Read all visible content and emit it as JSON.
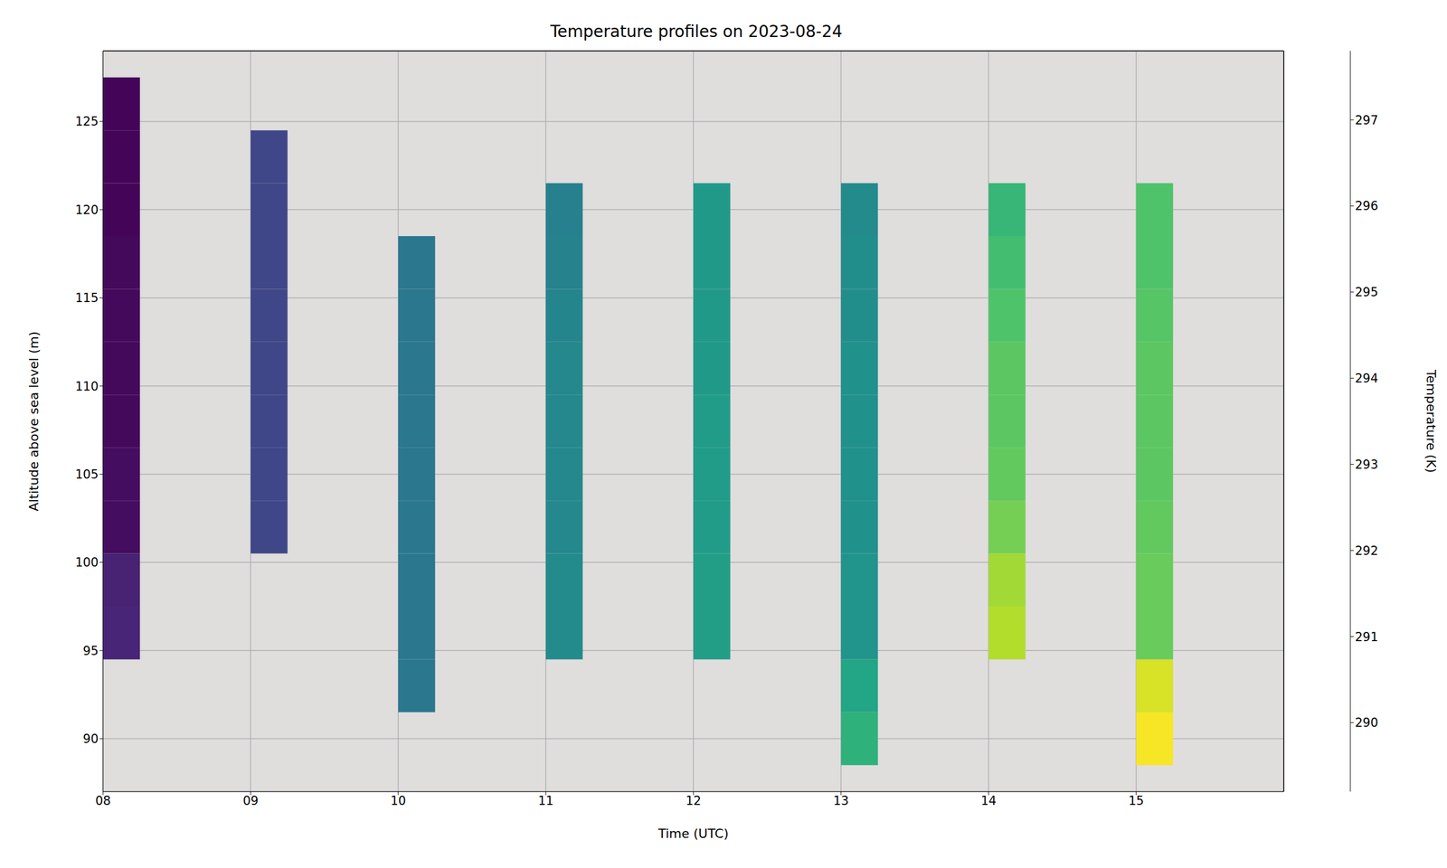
{
  "chart_data": {
    "type": "heatmap",
    "title": "Temperature profiles on 2023-08-24",
    "x_label": "Time (UTC)",
    "y_label": "Altitude above sea level (m)",
    "xlim": [
      8,
      16
    ],
    "xticks": [
      {
        "value": 8,
        "label": "08"
      },
      {
        "value": 9,
        "label": "09"
      },
      {
        "value": 10,
        "label": "10"
      },
      {
        "value": 11,
        "label": "11"
      },
      {
        "value": 12,
        "label": "12"
      },
      {
        "value": 13,
        "label": "13"
      },
      {
        "value": 14,
        "label": "14"
      },
      {
        "value": 15,
        "label": "15"
      }
    ],
    "ylim": [
      87,
      129
    ],
    "yticks": [
      90,
      95,
      100,
      105,
      110,
      115,
      120,
      125
    ],
    "grid": true,
    "cell_width": 0.25,
    "profiles": [
      {
        "time": 8,
        "bin_edges": [
          94.5,
          97.5,
          100.5,
          103.5,
          106.5,
          109.5,
          112.5,
          115.5,
          118.5,
          121.5,
          124.5,
          127.5
        ],
        "values": [
          290.1,
          290.0,
          289.5,
          289.5,
          289.4,
          289.4,
          289.4,
          289.4,
          289.3,
          289.3,
          289.3
        ]
      },
      {
        "time": 9,
        "bin_edges": [
          100.5,
          103.5,
          106.5,
          109.5,
          112.5,
          115.5,
          118.5,
          121.5,
          124.5
        ],
        "values": [
          291.0,
          291.0,
          291.0,
          291.0,
          291.0,
          291.0,
          291.0,
          291.0
        ]
      },
      {
        "time": 10,
        "bin_edges": [
          91.5,
          94.5,
          97.5,
          100.5,
          103.5,
          106.5,
          109.5,
          112.5,
          115.5,
          118.5
        ],
        "values": [
          292.6,
          292.6,
          292.6,
          292.6,
          292.6,
          292.6,
          292.6,
          292.6,
          292.6
        ]
      },
      {
        "time": 11,
        "bin_edges": [
          94.5,
          97.5,
          100.5,
          103.5,
          106.5,
          109.5,
          112.5,
          115.5,
          118.5,
          121.5
        ],
        "values": [
          293.3,
          293.3,
          293.2,
          293.2,
          293.2,
          293.2,
          293.1,
          293.0,
          292.9
        ]
      },
      {
        "time": 12,
        "bin_edges": [
          94.5,
          97.5,
          100.5,
          103.5,
          106.5,
          109.5,
          112.5,
          115.5,
          118.5,
          121.5
        ],
        "values": [
          294.0,
          294.0,
          293.9,
          293.9,
          293.9,
          293.8,
          293.8,
          293.8,
          293.8
        ]
      },
      {
        "time": 13,
        "bin_edges": [
          88.5,
          91.5,
          94.5,
          97.5,
          100.5,
          103.5,
          106.5,
          109.5,
          112.5,
          115.5,
          118.5,
          121.5
        ],
        "values": [
          294.7,
          294.3,
          293.6,
          293.6,
          293.5,
          293.5,
          293.5,
          293.5,
          293.4,
          293.4,
          293.3
        ]
      },
      {
        "time": 14,
        "bin_edges": [
          94.5,
          97.5,
          100.5,
          103.5,
          106.5,
          109.5,
          112.5,
          115.5,
          118.5,
          121.5
        ],
        "values": [
          296.8,
          296.6,
          296.0,
          295.7,
          295.6,
          295.6,
          295.4,
          295.2,
          294.9
        ]
      },
      {
        "time": 15,
        "bin_edges": [
          88.5,
          91.5,
          94.5,
          97.5,
          100.5,
          103.5,
          106.5,
          109.5,
          112.5,
          115.5,
          118.5,
          121.5
        ],
        "values": [
          297.7,
          297.3,
          295.8,
          295.8,
          295.7,
          295.6,
          295.6,
          295.6,
          295.5,
          295.4,
          295.4
        ]
      }
    ],
    "colorbar": {
      "label": "Temperature (K)",
      "range": [
        289.2,
        297.8
      ],
      "ticks": [
        290,
        291,
        292,
        293,
        294,
        295,
        296,
        297
      ]
    }
  }
}
